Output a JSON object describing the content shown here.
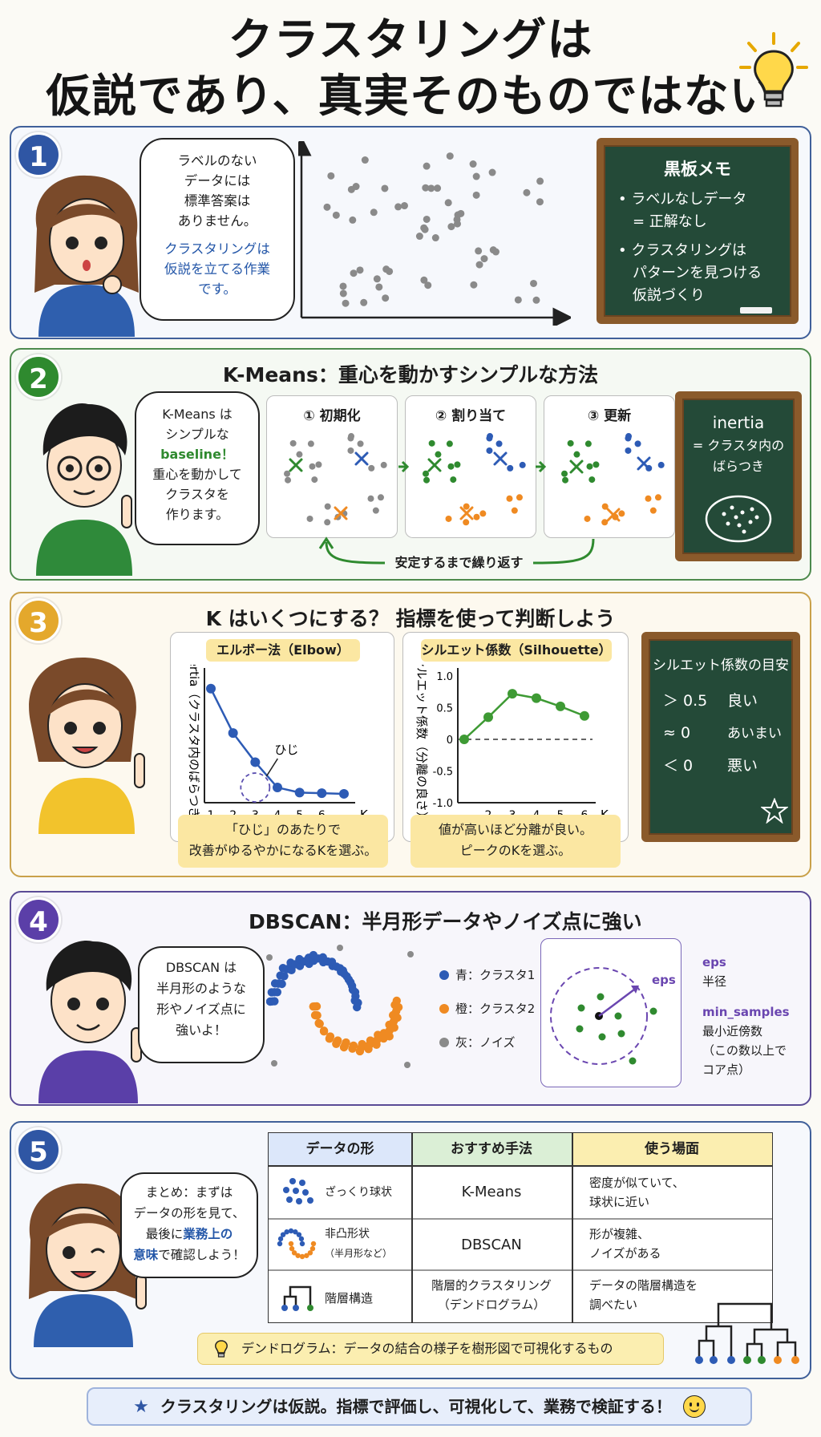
{
  "title_line1": "クラスタリングは",
  "title_line2": "仮説であり、真実そのものではない",
  "icons": {
    "bulb": "lightbulb-icon",
    "star": "star-icon",
    "smile": "smiley-icon"
  },
  "colors": {
    "blue": "#2d5bb5",
    "green": "#2f8a2f",
    "orange": "#ef8a22",
    "gray": "#8a8a8a",
    "purple": "#6a46b0"
  },
  "s1": {
    "num": "1",
    "bubble_lines": [
      "ラベルのない",
      "データには",
      "標準答案は",
      "ありません。"
    ],
    "bubble_blue": [
      "クラスタリングは",
      "仮説を立てる作業",
      "です。"
    ],
    "board_title": "黒板メモ",
    "board_items": [
      [
        "• ラベルなしデータ",
        "　= 正解なし"
      ],
      [
        "• クラスタリングは",
        "　パターンを見つける",
        "　仮説づくり"
      ]
    ]
  },
  "s2": {
    "num": "2",
    "title": "K-Means：重心を動かすシンプルな方法",
    "bubble_top": [
      "K-Means は",
      "シンプルな"
    ],
    "bubble_green": "baseline！",
    "bubble_bottom": [
      "重心を動かして",
      "クラスタを",
      "作ります。"
    ],
    "steps": [
      "① 初期化",
      "② 割り当て",
      "③ 更新"
    ],
    "repeat": "安定するまで繰り返す",
    "board_title": "inertia",
    "board_lines": [
      "= クラスタ内の",
      "ばらつき"
    ]
  },
  "s3": {
    "num": "3",
    "title": "K はいくつにする？ 指標を使って判断しよう",
    "elbow": {
      "title": "エルボー法（Elbow）",
      "ylabel": "inertia（クラスタ内のばらつき）",
      "xlabel": "K",
      "annotation": "ひじ",
      "note": [
        "「ひじ」のあたりで",
        "改善がゆるやかになるKを選ぶ。"
      ]
    },
    "silhouette": {
      "title": "シルエット係数（Silhouette）",
      "ylabel": "シルエット係数（分離の良さ）",
      "xlabel": "K",
      "note": [
        "値が高いほど分離が良い。",
        "ピークのKを選ぶ。"
      ]
    },
    "board_title": "シルエット係数の目安",
    "board_rows": [
      [
        "＞ 0.5",
        "良い"
      ],
      [
        "≈ 0",
        "あいまい"
      ],
      [
        "＜ 0",
        "悪い"
      ]
    ]
  },
  "chart_data": [
    {
      "type": "line",
      "title": "エルボー法（Elbow）",
      "xlabel": "K",
      "ylabel": "inertia（クラスタ内のばらつき）",
      "x": [
        1,
        2,
        3,
        4,
        5,
        6,
        7
      ],
      "x_ticks": [
        "1",
        "2",
        "3",
        "4",
        "5",
        "6"
      ],
      "values": [
        0.9,
        0.55,
        0.32,
        0.12,
        0.08,
        0.075,
        0.07
      ],
      "ylim": [
        0,
        1
      ],
      "grid": false
    },
    {
      "type": "line",
      "title": "シルエット係数（Silhouette）",
      "xlabel": "K",
      "ylabel": "シルエット係数（分離の良さ）",
      "x": [
        1,
        2,
        3,
        4,
        5,
        6
      ],
      "x_ticks": [
        "2",
        "3",
        "4",
        "5",
        "6"
      ],
      "y_ticks": [
        "1.0",
        "0.5",
        "0",
        "-0.5",
        "-1.0"
      ],
      "values": [
        0.0,
        0.35,
        0.72,
        0.65,
        0.52,
        0.37
      ],
      "ylim": [
        -1,
        1
      ],
      "grid": false
    }
  ],
  "s4": {
    "num": "4",
    "title": "DBSCAN：半月形データやノイズ点に強い",
    "bubble_lines": [
      "DBSCAN は",
      "半月形のような",
      "形やノイズ点に",
      "強いよ！"
    ],
    "legend": [
      "青：クラスタ1",
      "橙：クラスタ2",
      "灰：ノイズ"
    ],
    "eps_label": "eps",
    "terms": [
      {
        "name": "eps",
        "desc": [
          "半径"
        ]
      },
      {
        "name": "min_samples",
        "desc": [
          "最小近傍数",
          "（この数以上で",
          "コア点）"
        ]
      }
    ]
  },
  "s5": {
    "num": "5",
    "bubble_top": [
      "まとめ：まずは",
      "データの形を見て、"
    ],
    "bubble_mixed_pre": "最後に",
    "bubble_mixed_blue": "業務上の",
    "bubble_last_blue": "意味",
    "bubble_last_rest": "で確認しよう！",
    "headers": [
      "データの形",
      "おすすめ手法",
      "使う場面"
    ],
    "rows": [
      {
        "shape": [
          "ざっくり球状"
        ],
        "method": [
          "K-Means"
        ],
        "scene": [
          "密度が似ていて、",
          "球状に近い"
        ]
      },
      {
        "shape": [
          "非凸形状",
          "（半月形など）"
        ],
        "method": [
          "DBSCAN"
        ],
        "scene": [
          "形が複雑、",
          "ノイズがある"
        ]
      },
      {
        "shape": [
          "階層構造"
        ],
        "method": [
          "階層的クラスタリング",
          "（デンドログラム）"
        ],
        "scene": [
          "データの階層構造を",
          "調べたい"
        ]
      }
    ],
    "tip": "デンドログラム：データの結合の様子を樹形図で可視化するもの"
  },
  "footer": "クラスタリングは仮説。指標で評価し、可視化して、業務で検証する！"
}
